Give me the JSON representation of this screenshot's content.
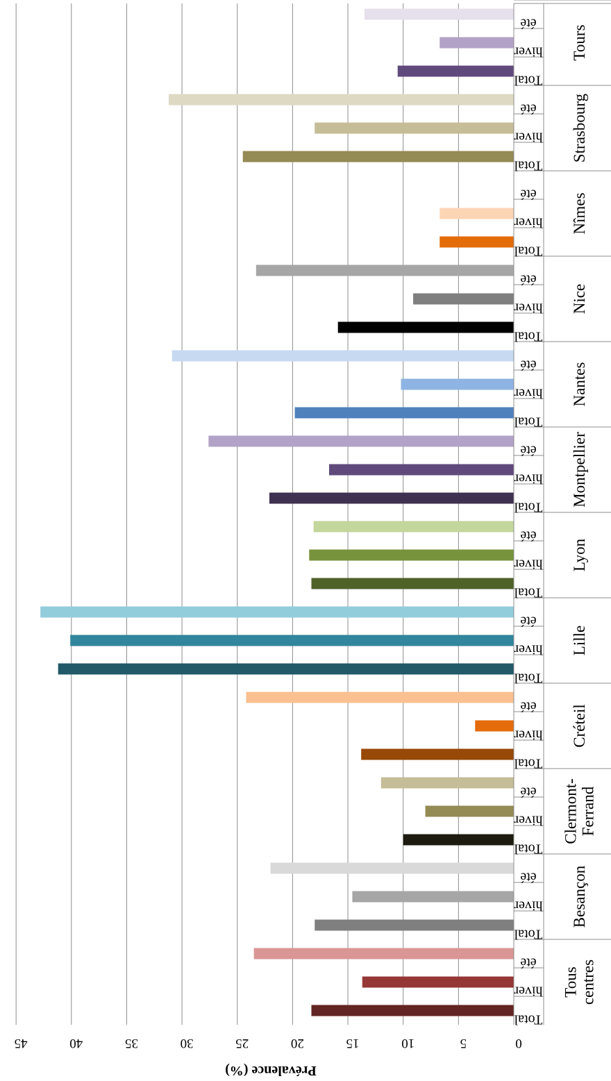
{
  "chart_data": {
    "type": "bar",
    "orientation": "horizontal-rotated",
    "title": "",
    "ylabel": "Prévalence (%)",
    "ylim": [
      0,
      45
    ],
    "ytick_step": 5,
    "grid": true,
    "subcategories": [
      "Total",
      "hiver",
      "été"
    ],
    "groups": [
      {
        "name": "Tous centres",
        "values": [
          18.3,
          13.7,
          23.5
        ],
        "colors": [
          "#632523",
          "#953735",
          "#d99694"
        ]
      },
      {
        "name": "Besançon",
        "values": [
          18.0,
          14.6,
          22.0
        ],
        "colors": [
          "#7f7f7f",
          "#a6a6a6",
          "#d9d9d9"
        ]
      },
      {
        "name": "Clermont-Ferrand",
        "values": [
          10.0,
          8.0,
          12.0
        ],
        "colors": [
          "#1d1b10",
          "#948a54",
          "#c4bd97"
        ]
      },
      {
        "name": "Créteil",
        "values": [
          13.8,
          3.5,
          24.2
        ],
        "colors": [
          "#984807",
          "#e46c0a",
          "#fac090"
        ]
      },
      {
        "name": "Lille",
        "values": [
          41.2,
          40.1,
          42.8
        ],
        "colors": [
          "#215968",
          "#31859c",
          "#92cddc"
        ]
      },
      {
        "name": "Lyon",
        "values": [
          18.3,
          18.5,
          18.1
        ],
        "colors": [
          "#4f6228",
          "#77933c",
          "#c3d69b"
        ]
      },
      {
        "name": "Montpellier",
        "values": [
          22.1,
          16.7,
          27.6
        ],
        "colors": [
          "#3f3151",
          "#604a7b",
          "#b2a2c7"
        ]
      },
      {
        "name": "Nantes",
        "values": [
          19.8,
          10.2,
          30.9
        ],
        "colors": [
          "#4f81bd",
          "#8eb4e3",
          "#c6d9f1"
        ]
      },
      {
        "name": "Nice",
        "values": [
          15.9,
          9.1,
          23.3
        ],
        "colors": [
          "#000000",
          "#7f7f7f",
          "#a6a6a6"
        ]
      },
      {
        "name": "Nîmes",
        "values": [
          6.7,
          6.7,
          0
        ],
        "colors": [
          "#e46c0a",
          "#fcd5b5",
          "#fde9d9"
        ]
      },
      {
        "name": "Strasbourg",
        "values": [
          24.5,
          18.0,
          31.2
        ],
        "colors": [
          "#948a54",
          "#c4bd97",
          "#ddd9c3"
        ]
      },
      {
        "name": "Tours",
        "values": [
          10.5,
          6.7,
          13.5
        ],
        "colors": [
          "#604a7b",
          "#b3a2c7",
          "#e6e0ec"
        ]
      }
    ]
  }
}
